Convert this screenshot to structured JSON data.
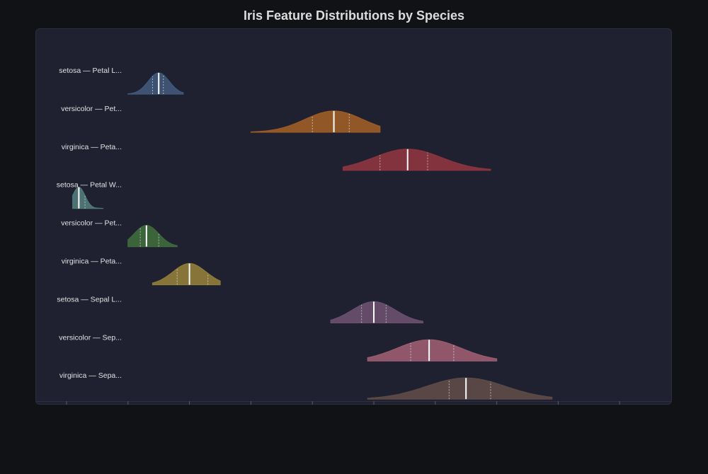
{
  "title": "Iris Feature Distributions by Species",
  "chart_data": {
    "type": "ridgeline",
    "title": "Iris Feature Distributions by Species",
    "xlim": [
      0,
      9.5
    ],
    "grid": false,
    "rows": [
      {
        "label": "setosa — Petal L...",
        "color": "#41587a",
        "min": 1.0,
        "max": 1.9,
        "q1": 1.4,
        "median": 1.5,
        "q3": 1.575,
        "sd": 0.17
      },
      {
        "label": "versicolor — Pet...",
        "color": "#9b5c26",
        "min": 3.0,
        "max": 5.1,
        "q1": 4.0,
        "median": 4.35,
        "q3": 4.6,
        "sd": 0.47
      },
      {
        "label": "virginica — Peta...",
        "color": "#8b3540",
        "min": 4.5,
        "max": 6.9,
        "q1": 5.1,
        "median": 5.55,
        "q3": 5.875,
        "sd": 0.55
      },
      {
        "label": "setosa — Petal W...",
        "color": "#507a7a",
        "min": 0.1,
        "max": 0.6,
        "q1": 0.2,
        "median": 0.2,
        "q3": 0.3,
        "sd": 0.1
      },
      {
        "label": "versicolor — Pet...",
        "color": "#3f6a3c",
        "min": 1.0,
        "max": 1.8,
        "q1": 1.2,
        "median": 1.3,
        "q3": 1.5,
        "sd": 0.2
      },
      {
        "label": "virginica — Peta...",
        "color": "#8f7c39",
        "min": 1.4,
        "max": 2.5,
        "q1": 1.8,
        "median": 2.0,
        "q3": 2.3,
        "sd": 0.27
      },
      {
        "label": "setosa — Sepal L...",
        "color": "#6a4f6e",
        "min": 4.3,
        "max": 5.8,
        "q1": 4.8,
        "median": 5.0,
        "q3": 5.2,
        "sd": 0.35
      },
      {
        "label": "versicolor — Sep...",
        "color": "#9a5c70",
        "min": 4.9,
        "max": 7.0,
        "q1": 5.6,
        "median": 5.9,
        "q3": 6.3,
        "sd": 0.52
      },
      {
        "label": "virginica — Sepa...",
        "color": "#5e4b48",
        "min": 4.9,
        "max": 7.9,
        "q1": 6.225,
        "median": 6.5,
        "q3": 6.9,
        "sd": 0.64
      }
    ]
  }
}
